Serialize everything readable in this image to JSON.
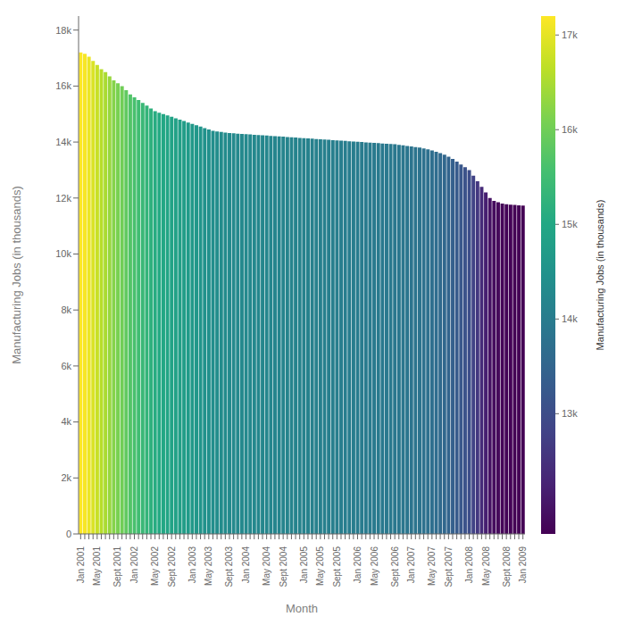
{
  "chart_data": {
    "type": "bar",
    "x_label": "Month",
    "y_label": "Manufacturing Jobs (in thousands)",
    "categories": [
      "Jan 2001",
      null,
      null,
      null,
      "May 2001",
      null,
      null,
      null,
      null,
      "Sept 2001",
      null,
      null,
      null,
      "Jan 2002",
      null,
      null,
      null,
      null,
      "May 2002",
      null,
      null,
      null,
      "Sept 2002",
      null,
      null,
      null,
      null,
      "Jan 2003",
      null,
      null,
      null,
      "May 2003",
      null,
      null,
      null,
      null,
      "Sept 2003",
      null,
      null,
      null,
      "Jan 2004",
      null,
      null,
      null,
      null,
      "May 2004",
      null,
      null,
      null,
      "Sept 2004",
      null,
      null,
      null,
      null,
      "Jan 2005",
      null,
      null,
      null,
      "May 2005",
      null,
      null,
      null,
      "Sept 2005",
      null,
      null,
      null,
      null,
      "Jan 2006",
      null,
      null,
      null,
      "May 2006",
      null,
      null,
      null,
      null,
      "Sept 2006",
      null,
      null,
      null,
      "Jan 2007",
      null,
      null,
      null,
      null,
      "May 2007",
      null,
      null,
      null,
      "Sept 2007",
      null,
      null,
      null,
      null,
      "Jan 2008",
      null,
      null,
      null,
      "May 2008",
      null,
      null,
      null,
      null,
      "Sept 2008",
      null,
      null,
      null,
      "Jan 2009"
    ],
    "values": [
      17200,
      17150,
      17050,
      16900,
      16750,
      16600,
      16500,
      16350,
      16200,
      16100,
      16000,
      15850,
      15700,
      15600,
      15500,
      15400,
      15300,
      15200,
      15100,
      15050,
      15000,
      14950,
      14900,
      14850,
      14800,
      14750,
      14700,
      14650,
      14600,
      14550,
      14500,
      14450,
      14400,
      14380,
      14360,
      14340,
      14320,
      14310,
      14300,
      14290,
      14280,
      14270,
      14260,
      14250,
      14240,
      14230,
      14220,
      14210,
      14200,
      14190,
      14180,
      14170,
      14160,
      14150,
      14140,
      14130,
      14120,
      14110,
      14100,
      14090,
      14080,
      14070,
      14060,
      14050,
      14040,
      14030,
      14020,
      14010,
      14000,
      13990,
      13980,
      13970,
      13960,
      13950,
      13940,
      13930,
      13920,
      13900,
      13880,
      13860,
      13840,
      13820,
      13800,
      13770,
      13740,
      13700,
      13650,
      13600,
      13550,
      13480,
      13400,
      13300,
      13200,
      13100,
      13000,
      12800,
      12600,
      12400,
      12200,
      12000,
      11900,
      11850,
      11800,
      11780,
      11760,
      11750,
      11740,
      11730
    ],
    "ylim": [
      0,
      18500
    ],
    "yticks": [
      0,
      {
        "value": 2000,
        "label": "2k"
      },
      {
        "value": 4000,
        "label": "4k"
      },
      {
        "value": 6000,
        "label": "6k"
      },
      {
        "value": 8000,
        "label": "8k"
      },
      {
        "value": 10000,
        "label": "10k"
      },
      {
        "value": 12000,
        "label": "12k"
      },
      {
        "value": 14000,
        "label": "14k"
      },
      {
        "value": 16000,
        "label": "16k"
      },
      {
        "value": 18000,
        "label": "18k"
      }
    ],
    "grid": false,
    "colorbar_label": "Manufacturing Jobs (in thousands)",
    "colorbar_range": [
      11730,
      17200
    ],
    "colorbar_ticks": [
      {
        "value": 13000,
        "label": "13k"
      },
      {
        "value": 14000,
        "label": "14k"
      },
      {
        "value": 15000,
        "label": "15k"
      },
      {
        "value": 16000,
        "label": "16k"
      },
      {
        "value": 17000,
        "label": "17k"
      }
    ]
  }
}
